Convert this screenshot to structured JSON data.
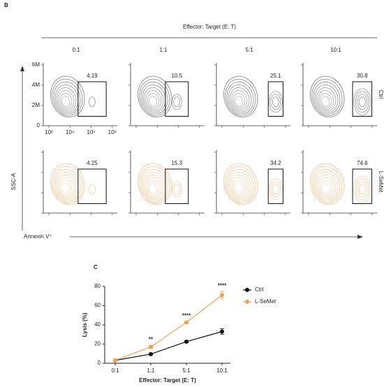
{
  "flow_panel": {
    "label": "B",
    "header": "Effector: Target (E: T)",
    "columns": [
      "0:1",
      "1:1",
      "5:1",
      "10:1"
    ],
    "rows": [
      {
        "name": "Ctrl",
        "color": "#333333",
        "gates": [
          4.19,
          10.5,
          25.1,
          30.8
        ]
      },
      {
        "name": "L-SeMet",
        "color": "#f5a04a",
        "gates": [
          4.25,
          15.3,
          34.2,
          74.6
        ]
      }
    ],
    "ylabel": "SSC-A",
    "xlabel": "Annexin V⁺",
    "ylim": [
      0,
      6200000
    ],
    "yticks": [
      0,
      {
        "value": 2000000,
        "label": "2M"
      },
      {
        "value": 4000000,
        "label": "4M"
      },
      {
        "value": 6000000,
        "label": "6M"
      }
    ],
    "xscale": "log",
    "xlim": [
      30,
      300000000
    ],
    "xticks": [
      {
        "value": 100,
        "label": "10²"
      },
      {
        "value": 10000,
        "label": "10⁴"
      },
      {
        "value": 1000000,
        "label": "10⁶"
      },
      {
        "value": 100000000,
        "label": "10⁸"
      }
    ]
  },
  "chart_data": {
    "type": "line",
    "label": "C",
    "categories": [
      "0:1",
      "1:1",
      "5:1",
      "10:1"
    ],
    "series": [
      {
        "name": "Ctrl",
        "color": "#111111",
        "values": [
          3,
          9.5,
          22.5,
          33
        ],
        "errors": [
          0.5,
          1,
          1,
          3
        ]
      },
      {
        "name": "L-SeMet",
        "color": "#f5a04a",
        "values": [
          3,
          17,
          42.5,
          71
        ],
        "errors": [
          0.5,
          1.5,
          1,
          3.5
        ]
      }
    ],
    "annotations": [
      null,
      "**",
      "****",
      "****"
    ],
    "ylabel": "Lysis (%)",
    "xlabel": "Effector: Target (E: T)",
    "ylim": [
      0,
      80
    ],
    "yticks": [
      0,
      20,
      40,
      60,
      80
    ],
    "legend": "right"
  }
}
